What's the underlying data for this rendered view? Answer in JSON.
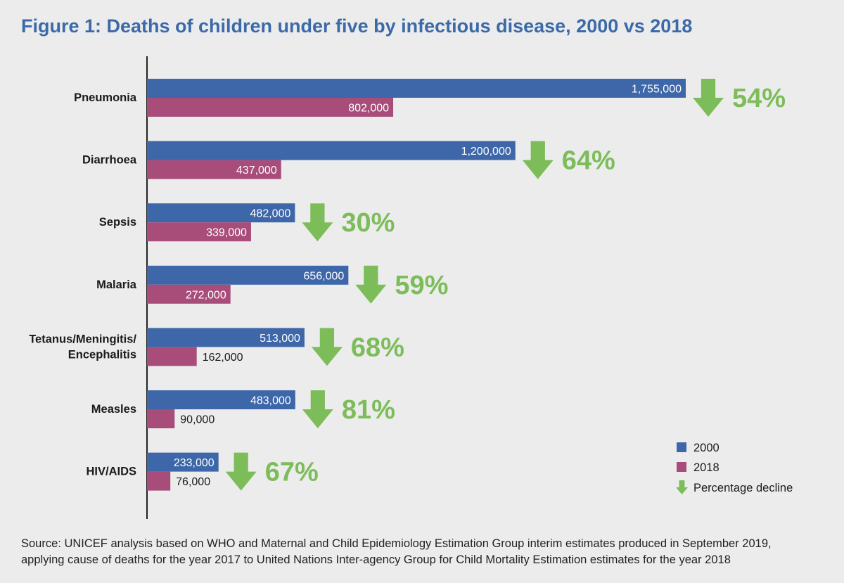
{
  "title": "Figure 1: Deaths of children under five by infectious disease, 2000 vs 2018",
  "source_lines": [
    "Source: UNICEF analysis based on WHO and Maternal and Child Epidemiology Estimation Group interim estimates produced in September 2019,",
    "applying cause of deaths for the year 2017 to United Nations Inter-agency Group for Child Mortality Estimation estimates for the year 2018"
  ],
  "colors": {
    "series_2000": "#3d67a8",
    "series_2018": "#a84d7a",
    "decline": "#7cbd5a",
    "title": "#3c6aa8"
  },
  "chart_data": {
    "type": "bar",
    "orientation": "horizontal",
    "categories": [
      [
        "Pneumonia"
      ],
      [
        "Diarrhoea"
      ],
      [
        "Sepsis"
      ],
      [
        "Malaria"
      ],
      [
        "Tetanus/Meningitis/",
        "Encephalitis"
      ],
      [
        "Measles"
      ],
      [
        "HIV/AIDS"
      ]
    ],
    "series": [
      {
        "name": "2000",
        "values": [
          1755000,
          1200000,
          482000,
          656000,
          513000,
          483000,
          233000
        ],
        "labels": [
          "1,755,000",
          "1,200,000",
          "482,000",
          "656,000",
          "513,000",
          "483,000",
          "233,000"
        ]
      },
      {
        "name": "2018",
        "values": [
          802000,
          437000,
          339000,
          272000,
          162000,
          90000,
          76000
        ],
        "labels": [
          "802,000",
          "437,000",
          "339,000",
          "272,000",
          "162,000",
          "90,000",
          "76,000"
        ]
      }
    ],
    "percentage_decline": [
      "54%",
      "64%",
      "30%",
      "59%",
      "68%",
      "81%",
      "67%"
    ],
    "legend": [
      {
        "key": "series_2000",
        "label": "2000"
      },
      {
        "key": "series_2018",
        "label": "2018"
      },
      {
        "key": "decline",
        "label": "Percentage decline"
      }
    ],
    "legend_position": "bottom-right",
    "xlim": [
      0,
      1755000
    ],
    "grid": false,
    "xlabel": "",
    "ylabel": ""
  }
}
